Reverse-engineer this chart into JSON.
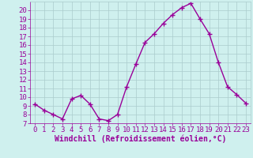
{
  "x": [
    0,
    1,
    2,
    3,
    4,
    5,
    6,
    7,
    8,
    9,
    10,
    11,
    12,
    13,
    14,
    15,
    16,
    17,
    18,
    19,
    20,
    21,
    22,
    23
  ],
  "y": [
    9.2,
    8.5,
    8.0,
    7.5,
    9.8,
    10.2,
    9.2,
    7.5,
    7.3,
    8.0,
    11.2,
    13.8,
    16.3,
    17.3,
    18.5,
    19.5,
    20.3,
    20.8,
    19.0,
    17.3,
    14.0,
    11.2,
    10.3,
    9.3
  ],
  "line_color": "#990099",
  "marker": "+",
  "marker_size": 4,
  "marker_lw": 1.0,
  "bg_color": "#cff0ee",
  "grid_color": "#aacccc",
  "xlabel": "Windchill (Refroidissement éolien,°C)",
  "xlabel_color": "#990099",
  "tick_color": "#990099",
  "ylim": [
    7,
    21
  ],
  "xlim": [
    -0.5,
    23.5
  ],
  "yticks": [
    7,
    8,
    9,
    10,
    11,
    12,
    13,
    14,
    15,
    16,
    17,
    18,
    19,
    20
  ],
  "xticks": [
    0,
    1,
    2,
    3,
    4,
    5,
    6,
    7,
    8,
    9,
    10,
    11,
    12,
    13,
    14,
    15,
    16,
    17,
    18,
    19,
    20,
    21,
    22,
    23
  ],
  "font_size": 6.5,
  "xlabel_font_size": 7.0,
  "line_width": 1.0
}
